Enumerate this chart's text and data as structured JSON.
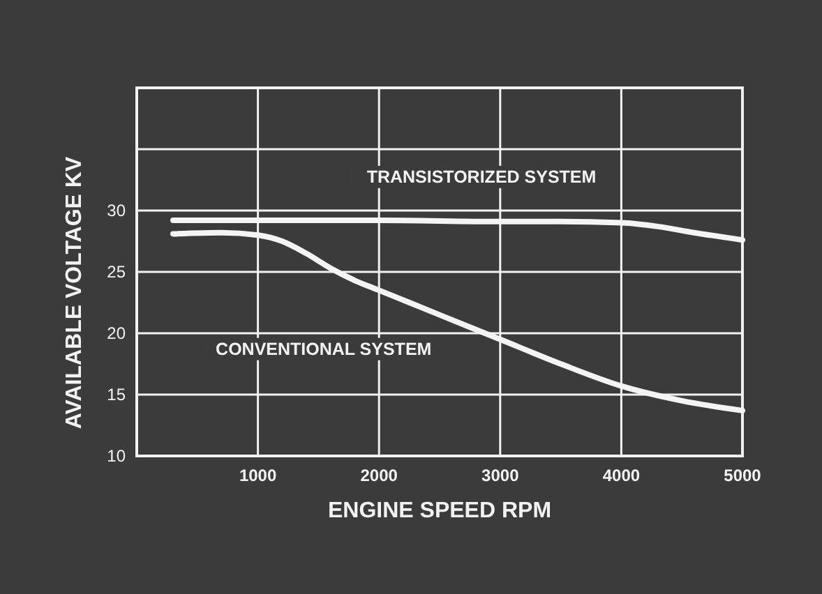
{
  "chart_data": {
    "type": "line",
    "xlabel": "ENGINE SPEED RPM",
    "ylabel": "AVAILABLE VOLTAGE KV",
    "xlim": [
      0,
      5000
    ],
    "xticks": [
      1000,
      2000,
      3000,
      4000,
      5000
    ],
    "ylim": [
      10,
      40
    ],
    "yticks": [
      10,
      15,
      20,
      25,
      30,
      {
        "value": 35,
        "label": null
      },
      {
        "value": 40,
        "label": null
      }
    ],
    "grid": true,
    "legend": false,
    "series": [
      {
        "name": "TRANSISTORIZED SYSTEM",
        "color": "#f4f4f4",
        "x": [
          300,
          1000,
          2000,
          3000,
          3500,
          4000,
          4300,
          4600,
          5000
        ],
        "values": [
          29.2,
          29.2,
          29.2,
          29.1,
          29.1,
          29,
          28.7,
          28.2,
          27.6
        ]
      },
      {
        "name": "CONVENTIONAL SYSTEM",
        "color": "#f4f4f4",
        "x": [
          300,
          700,
          1000,
          1200,
          1400,
          1600,
          1800,
          2000,
          2500,
          3000,
          3500,
          4000,
          4500,
          5000
        ],
        "values": [
          28.1,
          28.2,
          28,
          27.5,
          26.5,
          25.3,
          24.3,
          23.5,
          21.5,
          19.5,
          17.5,
          15.7,
          14.5,
          13.7
        ]
      }
    ]
  }
}
